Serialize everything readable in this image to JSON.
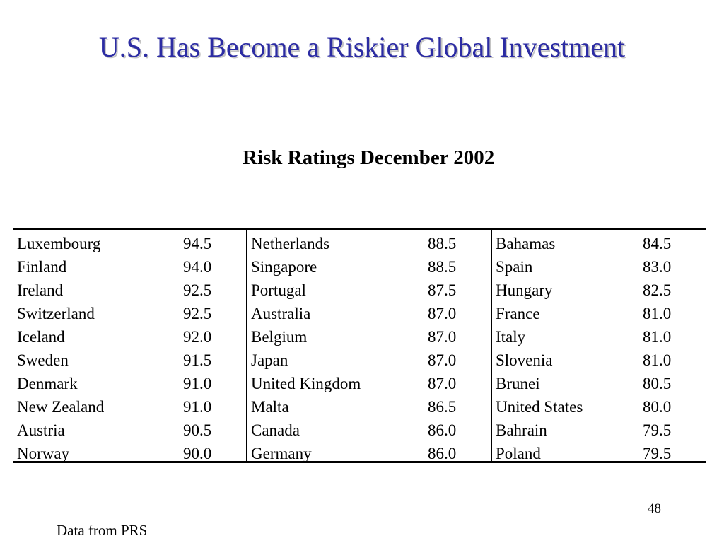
{
  "slide": {
    "title": "U.S. Has Become a Riskier Global Investment",
    "table_heading": "Risk Ratings December 2002",
    "page_number": "48",
    "source_note": "Data from PRS",
    "title_color": "#2c2ca3"
  },
  "table": {
    "columns": [
      {
        "rows": [
          {
            "country": "Luxembourg",
            "rating": "94.5"
          },
          {
            "country": "Finland",
            "rating": "94.0"
          },
          {
            "country": "Ireland",
            "rating": "92.5"
          },
          {
            "country": "Switzerland",
            "rating": "92.5"
          },
          {
            "country": "Iceland",
            "rating": "92.0"
          },
          {
            "country": "Sweden",
            "rating": "91.5"
          },
          {
            "country": "Denmark",
            "rating": "91.0"
          },
          {
            "country": "New Zealand",
            "rating": "91.0"
          },
          {
            "country": "Austria",
            "rating": "90.5"
          },
          {
            "country": "Norway",
            "rating": "90.0"
          }
        ]
      },
      {
        "rows": [
          {
            "country": "Netherlands",
            "rating": "88.5"
          },
          {
            "country": "Singapore",
            "rating": "88.5"
          },
          {
            "country": "Portugal",
            "rating": "87.5"
          },
          {
            "country": "Australia",
            "rating": "87.0"
          },
          {
            "country": "Belgium",
            "rating": "87.0"
          },
          {
            "country": "Japan",
            "rating": "87.0"
          },
          {
            "country": "United Kingdom",
            "rating": "87.0"
          },
          {
            "country": "Malta",
            "rating": "86.5"
          },
          {
            "country": "Canada",
            "rating": "86.0"
          },
          {
            "country": "Germany",
            "rating": "86.0"
          }
        ]
      },
      {
        "rows": [
          {
            "country": "Bahamas",
            "rating": "84.5"
          },
          {
            "country": "Spain",
            "rating": "83.0"
          },
          {
            "country": "Hungary",
            "rating": "82.5"
          },
          {
            "country": "France",
            "rating": "81.0"
          },
          {
            "country": "Italy",
            "rating": "81.0"
          },
          {
            "country": "Slovenia",
            "rating": "81.0"
          },
          {
            "country": "Brunei",
            "rating": "80.5"
          },
          {
            "country": "United States",
            "rating": "80.0"
          },
          {
            "country": "Bahrain",
            "rating": "79.5"
          },
          {
            "country": "Poland",
            "rating": "79.5"
          }
        ]
      }
    ]
  }
}
